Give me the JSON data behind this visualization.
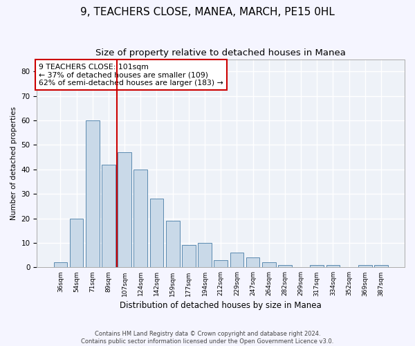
{
  "title": "9, TEACHERS CLOSE, MANEA, MARCH, PE15 0HL",
  "subtitle": "Size of property relative to detached houses in Manea",
  "xlabel": "Distribution of detached houses by size in Manea",
  "ylabel": "Number of detached properties",
  "bar_labels": [
    "36sqm",
    "54sqm",
    "71sqm",
    "89sqm",
    "107sqm",
    "124sqm",
    "142sqm",
    "159sqm",
    "177sqm",
    "194sqm",
    "212sqm",
    "229sqm",
    "247sqm",
    "264sqm",
    "282sqm",
    "299sqm",
    "317sqm",
    "334sqm",
    "352sqm",
    "369sqm",
    "387sqm"
  ],
  "bar_values": [
    2,
    20,
    60,
    42,
    47,
    40,
    28,
    19,
    9,
    10,
    3,
    6,
    4,
    2,
    1,
    0,
    1,
    1,
    0,
    1,
    1
  ],
  "bar_color": "#c9d9e8",
  "bar_edge_color": "#5a8ab0",
  "vline_x": 3.5,
  "vline_color": "#cc0000",
  "annotation_text": "9 TEACHERS CLOSE: 101sqm\n← 37% of detached houses are smaller (109)\n62% of semi-detached houses are larger (183) →",
  "annotation_box_color": "#cc0000",
  "ylim": [
    0,
    85
  ],
  "yticks": [
    0,
    10,
    20,
    30,
    40,
    50,
    60,
    70,
    80
  ],
  "footer_line1": "Contains HM Land Registry data © Crown copyright and database right 2024.",
  "footer_line2": "Contains public sector information licensed under the Open Government Licence v3.0.",
  "title_fontsize": 11,
  "subtitle_fontsize": 9.5,
  "bg_color": "#eef2f8",
  "grid_color": "#ffffff",
  "fig_bg_color": "#f5f5ff"
}
